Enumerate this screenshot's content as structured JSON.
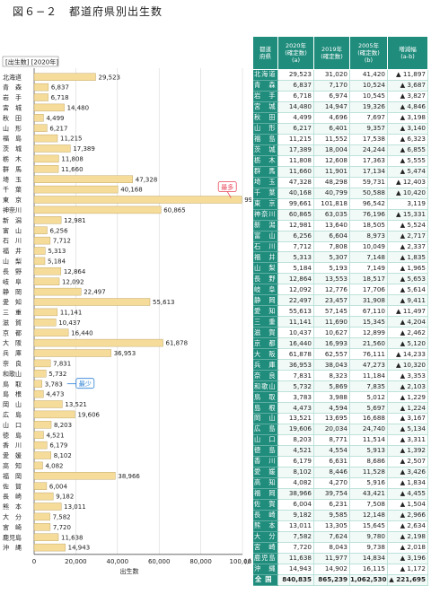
{
  "title": "図６−２　都道府県別出生数",
  "chart_data": {
    "type": "bar",
    "orientation": "horizontal",
    "title": "図６−２　都道府県別出生数",
    "legend_label": "[出生数] [2020年]",
    "xlabel": "出生数",
    "x_unit": "(人)",
    "xlim": [
      0,
      100000
    ],
    "x_ticks": [
      0,
      20000,
      40000,
      60000,
      80000,
      100000
    ],
    "x_tick_labels": [
      "0",
      "20,000",
      "40,000",
      "60,000",
      "80,000",
      "100,000"
    ],
    "bar_color": "#f6dc9a",
    "categories": [
      "北海道",
      "青　森",
      "岩　手",
      "宮　城",
      "秋　田",
      "山　形",
      "福　島",
      "茨　城",
      "栃　木",
      "群　馬",
      "埼　玉",
      "千　葉",
      "東　京",
      "神奈川",
      "新　潟",
      "富　山",
      "石　川",
      "福　井",
      "山　梨",
      "長　野",
      "岐　阜",
      "静　岡",
      "愛　知",
      "三　重",
      "滋　賀",
      "京　都",
      "大　阪",
      "兵　庫",
      "奈　良",
      "和歌山",
      "鳥　取",
      "島　根",
      "岡　山",
      "広　島",
      "山　口",
      "徳　島",
      "香　川",
      "愛　媛",
      "高　知",
      "福　岡",
      "佐　賀",
      "長　崎",
      "熊　本",
      "大　分",
      "宮　崎",
      "鹿児島",
      "沖　縄"
    ],
    "values": [
      29523,
      6837,
      6718,
      14480,
      4499,
      6217,
      11215,
      17389,
      11808,
      11660,
      47328,
      40168,
      99661,
      60865,
      12981,
      6256,
      7712,
      5313,
      5184,
      12864,
      12092,
      22497,
      55613,
      11141,
      10437,
      16440,
      61878,
      36953,
      7831,
      5732,
      3783,
      4473,
      13521,
      19606,
      8203,
      4521,
      6179,
      8102,
      4082,
      38966,
      6004,
      9182,
      13011,
      7582,
      7720,
      11638,
      14943
    ],
    "value_labels": [
      "29,523",
      "6,837",
      "6,718",
      "14,480",
      "4,499",
      "6,217",
      "11,215",
      "17,389",
      "11,808",
      "11,660",
      "47,328",
      "40,168",
      "99,661",
      "60,865",
      "12,981",
      "6,256",
      "7,712",
      "5,313",
      "5,184",
      "12,864",
      "12,092",
      "22,497",
      "55,613",
      "11,141",
      "10,437",
      "16,440",
      "61,878",
      "36,953",
      "7,831",
      "5,732",
      "3,783",
      "4,473",
      "13,521",
      "19,606",
      "8,203",
      "4,521",
      "6,179",
      "8,102",
      "4,082",
      "38,966",
      "6,004",
      "9,182",
      "13,011",
      "7,582",
      "7,720",
      "11,638",
      "14,943"
    ],
    "annotations": [
      {
        "text": "最多",
        "category": "東　京",
        "color": "#e8455a"
      },
      {
        "text": "最少",
        "category": "鳥　取",
        "color": "#2a7fd3"
      }
    ]
  },
  "table": {
    "header_color": "#1f8c7c",
    "headers": [
      "都道府県",
      "2020年(確定数)(a)",
      "2019年(確定数)",
      "2005年(確定数)(b)",
      "増減幅(a-b)"
    ],
    "header_lines": [
      [
        "都道",
        "府県"
      ],
      [
        "2020年",
        "(確定数)",
        "(a)"
      ],
      [
        "2019年",
        "(確定数)"
      ],
      [
        "2005年",
        "(確定数)",
        "(b)"
      ],
      [
        "増減幅",
        "(a-b)"
      ]
    ],
    "rows": [
      [
        "北海道",
        "29,523",
        "31,020",
        "41,420",
        "▲ 11,897"
      ],
      [
        "青　森",
        "6,837",
        "7,170",
        "10,524",
        "▲ 3,687"
      ],
      [
        "岩　手",
        "6,718",
        "6,974",
        "10,545",
        "▲ 3,827"
      ],
      [
        "宮　城",
        "14,480",
        "14,947",
        "19,326",
        "▲ 4,846"
      ],
      [
        "秋　田",
        "4,499",
        "4,696",
        "7,697",
        "▲ 3,198"
      ],
      [
        "山　形",
        "6,217",
        "6,401",
        "9,357",
        "▲ 3,140"
      ],
      [
        "福　島",
        "11,215",
        "11,552",
        "17,538",
        "▲ 6,323"
      ],
      [
        "茨　城",
        "17,389",
        "18,004",
        "24,244",
        "▲ 6,855"
      ],
      [
        "栃　木",
        "11,808",
        "12,608",
        "17,363",
        "▲ 5,555"
      ],
      [
        "群　馬",
        "11,660",
        "11,901",
        "17,134",
        "▲ 5,474"
      ],
      [
        "埼　玉",
        "47,328",
        "48,298",
        "59,731",
        "▲ 12,403"
      ],
      [
        "千　葉",
        "40,168",
        "40,799",
        "50,588",
        "▲ 10,420"
      ],
      [
        "東　京",
        "99,661",
        "101,818",
        "96,542",
        "3,119"
      ],
      [
        "神奈川",
        "60,865",
        "63,035",
        "76,196",
        "▲ 15,331"
      ],
      [
        "新　潟",
        "12,981",
        "13,640",
        "18,505",
        "▲ 5,524"
      ],
      [
        "富　山",
        "6,256",
        "6,604",
        "8,973",
        "▲ 2,717"
      ],
      [
        "石　川",
        "7,712",
        "7,808",
        "10,049",
        "▲ 2,337"
      ],
      [
        "福　井",
        "5,313",
        "5,307",
        "7,148",
        "▲ 1,835"
      ],
      [
        "山　梨",
        "5,184",
        "5,193",
        "7,149",
        "▲ 1,965"
      ],
      [
        "長　野",
        "12,864",
        "13,553",
        "18,517",
        "▲ 5,653"
      ],
      [
        "岐　阜",
        "12,092",
        "12,776",
        "17,706",
        "▲ 5,614"
      ],
      [
        "静　岡",
        "22,497",
        "23,457",
        "31,908",
        "▲ 9,411"
      ],
      [
        "愛　知",
        "55,613",
        "57,145",
        "67,110",
        "▲ 11,497"
      ],
      [
        "三　重",
        "11,141",
        "11,690",
        "15,345",
        "▲ 4,204"
      ],
      [
        "滋　賀",
        "10,437",
        "10,627",
        "12,899",
        "▲ 2,462"
      ],
      [
        "京　都",
        "16,440",
        "16,993",
        "21,560",
        "▲ 5,120"
      ],
      [
        "大　阪",
        "61,878",
        "62,557",
        "76,111",
        "▲ 14,233"
      ],
      [
        "兵　庫",
        "36,953",
        "38,043",
        "47,273",
        "▲ 10,320"
      ],
      [
        "奈　良",
        "7,831",
        "8,323",
        "11,184",
        "▲ 3,353"
      ],
      [
        "和歌山",
        "5,732",
        "5,869",
        "7,835",
        "▲ 2,103"
      ],
      [
        "鳥　取",
        "3,783",
        "3,988",
        "5,012",
        "▲ 1,229"
      ],
      [
        "島　根",
        "4,473",
        "4,594",
        "5,697",
        "▲ 1,224"
      ],
      [
        "岡　山",
        "13,521",
        "13,695",
        "16,688",
        "▲ 3,167"
      ],
      [
        "広　島",
        "19,606",
        "20,034",
        "24,740",
        "▲ 5,134"
      ],
      [
        "山　口",
        "8,203",
        "8,771",
        "11,514",
        "▲ 3,311"
      ],
      [
        "徳　島",
        "4,521",
        "4,554",
        "5,913",
        "▲ 1,392"
      ],
      [
        "香　川",
        "6,179",
        "6,631",
        "8,686",
        "▲ 2,507"
      ],
      [
        "愛　媛",
        "8,102",
        "8,446",
        "11,528",
        "▲ 3,426"
      ],
      [
        "高　知",
        "4,082",
        "4,270",
        "5,916",
        "▲ 1,834"
      ],
      [
        "福　岡",
        "38,966",
        "39,754",
        "43,421",
        "▲ 4,455"
      ],
      [
        "佐　賀",
        "6,004",
        "6,231",
        "7,508",
        "▲ 1,504"
      ],
      [
        "長　崎",
        "9,182",
        "9,585",
        "12,148",
        "▲ 2,966"
      ],
      [
        "熊　本",
        "13,011",
        "13,305",
        "15,645",
        "▲ 2,634"
      ],
      [
        "大　分",
        "7,582",
        "7,624",
        "9,780",
        "▲ 2,198"
      ],
      [
        "宮　崎",
        "7,720",
        "8,043",
        "9,738",
        "▲ 2,018"
      ],
      [
        "鹿児島",
        "11,638",
        "11,977",
        "14,834",
        "▲ 3,196"
      ],
      [
        "沖　縄",
        "14,943",
        "14,902",
        "16,115",
        "▲ 1,172"
      ],
      [
        "全国",
        "840,835",
        "865,239",
        "1,062,530",
        "▲ 221,695"
      ]
    ]
  }
}
